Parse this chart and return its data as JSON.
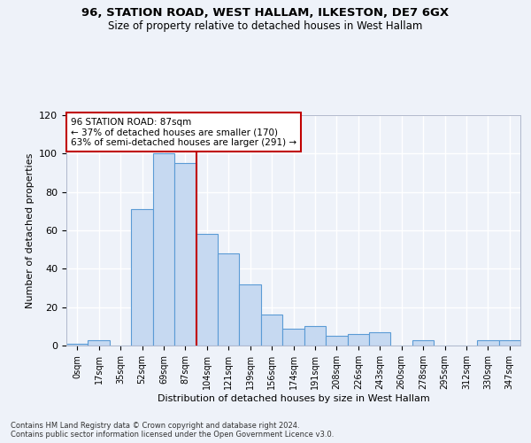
{
  "title1": "96, STATION ROAD, WEST HALLAM, ILKESTON, DE7 6GX",
  "title2": "Size of property relative to detached houses in West Hallam",
  "xlabel": "Distribution of detached houses by size in West Hallam",
  "ylabel": "Number of detached properties",
  "footnote": "Contains HM Land Registry data © Crown copyright and database right 2024.\nContains public sector information licensed under the Open Government Licence v3.0.",
  "bar_labels": [
    "0sqm",
    "17sqm",
    "35sqm",
    "52sqm",
    "69sqm",
    "87sqm",
    "104sqm",
    "121sqm",
    "139sqm",
    "156sqm",
    "174sqm",
    "191sqm",
    "208sqm",
    "226sqm",
    "243sqm",
    "260sqm",
    "278sqm",
    "295sqm",
    "312sqm",
    "330sqm",
    "347sqm"
  ],
  "bar_values": [
    1,
    3,
    0,
    71,
    100,
    95,
    58,
    48,
    32,
    16,
    9,
    10,
    5,
    6,
    7,
    0,
    3,
    0,
    0,
    3,
    3
  ],
  "bar_color": "#c6d9f1",
  "bar_edge_color": "#5b9bd5",
  "vline_x_idx": 5,
  "vline_color": "#c00000",
  "annotation_title": "96 STATION ROAD: 87sqm",
  "annotation_line1": "← 37% of detached houses are smaller (170)",
  "annotation_line2": "63% of semi-detached houses are larger (291) →",
  "annotation_box_color": "#c00000",
  "ylim": [
    0,
    120
  ],
  "yticks": [
    0,
    20,
    40,
    60,
    80,
    100,
    120
  ],
  "background_color": "#eef2f9",
  "grid_color": "#ffffff"
}
